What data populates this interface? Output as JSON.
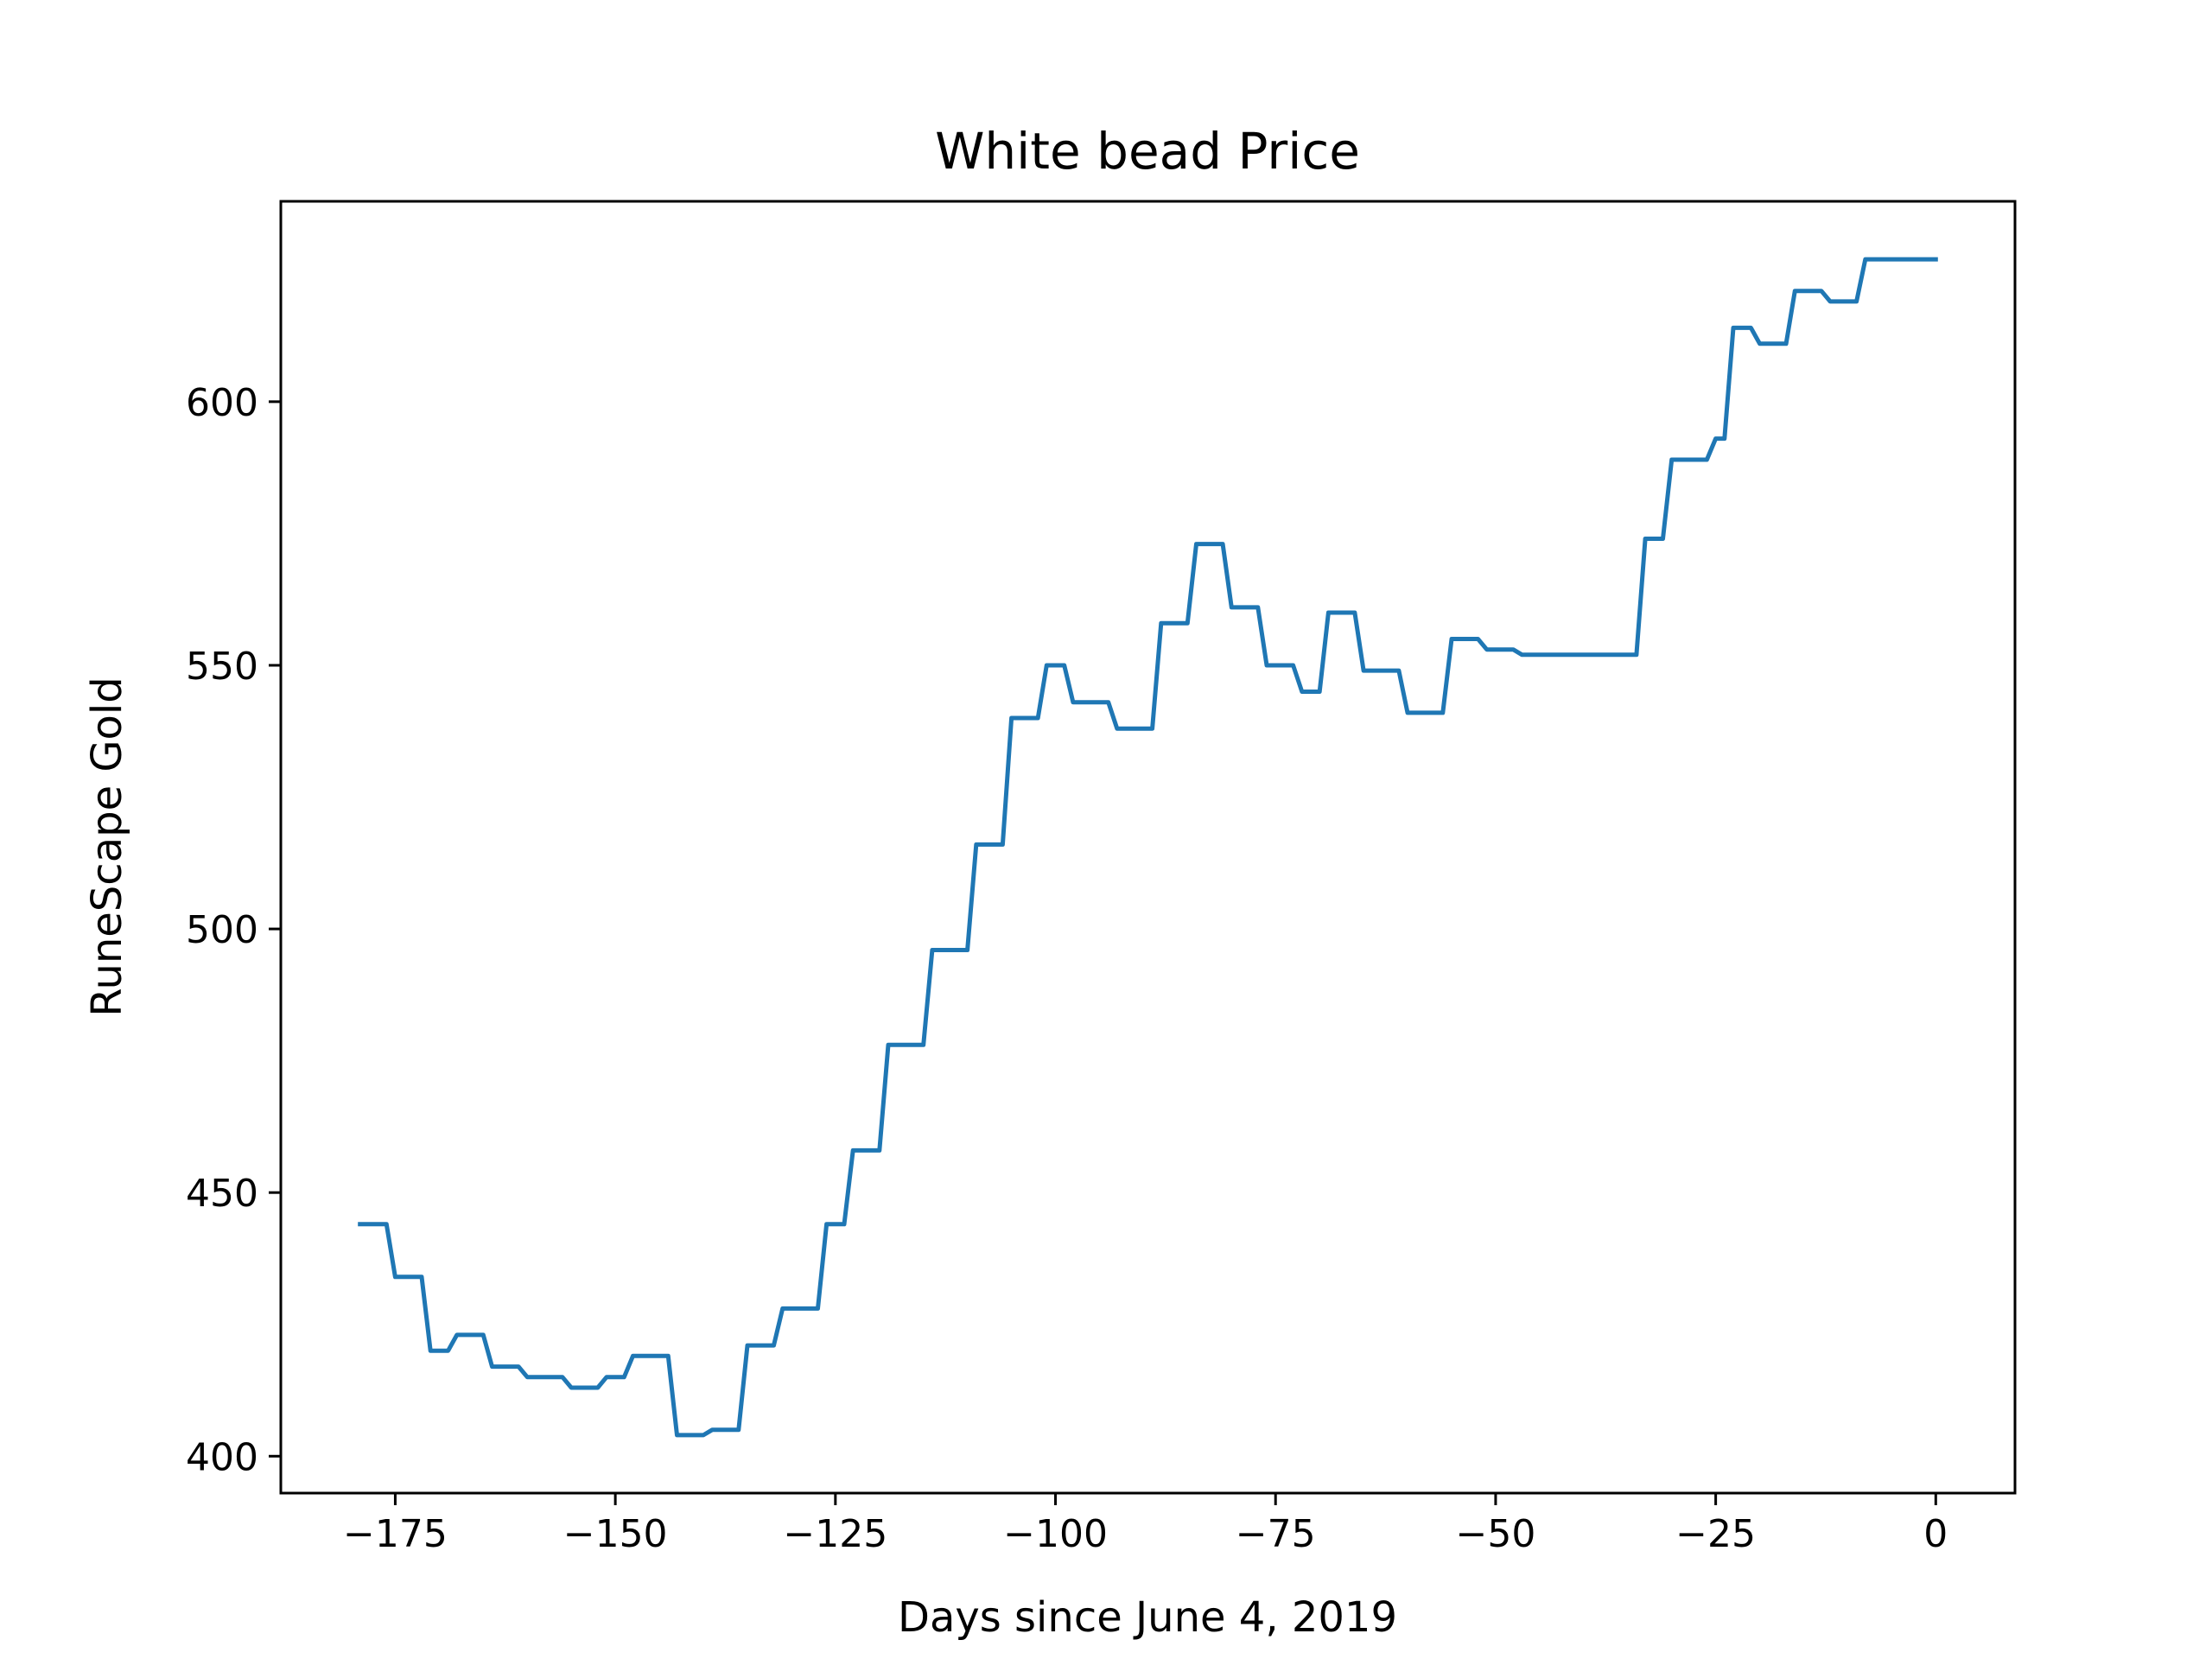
{
  "chart_data": {
    "type": "line",
    "title": "White bead Price",
    "xlabel": "Days since June 4, 2019",
    "ylabel": "RuneScape Gold",
    "xlim": [
      -188,
      9
    ],
    "ylim": [
      393,
      638
    ],
    "xticks": [
      -175,
      -150,
      -125,
      -100,
      -75,
      -50,
      -25,
      0
    ],
    "xtick_labels": [
      "−175",
      "−150",
      "−125",
      "−100",
      "−75",
      "−50",
      "−25",
      "0"
    ],
    "yticks": [
      400,
      450,
      500,
      550,
      600
    ],
    "ytick_labels": [
      "400",
      "450",
      "500",
      "550",
      "600"
    ],
    "grid": false,
    "legend": "none",
    "series": [
      {
        "color": "#1f77b4",
        "x": [
          -179,
          -176,
          -175,
          -172,
          -171,
          -169,
          -168,
          -165,
          -164,
          -161,
          -160,
          -156,
          -155,
          -152,
          -151,
          -149,
          -148,
          -144,
          -143,
          -140,
          -139,
          -136,
          -135,
          -132,
          -131,
          -127,
          -126,
          -124,
          -123,
          -120,
          -119,
          -115,
          -114,
          -110,
          -109,
          -106,
          -105,
          -102,
          -101,
          -99,
          -98,
          -94,
          -93,
          -89,
          -88,
          -85,
          -84,
          -81,
          -80,
          -77,
          -76,
          -73,
          -72,
          -70,
          -69,
          -66,
          -65,
          -61,
          -60,
          -56,
          -55,
          -52,
          -51,
          -48,
          -47,
          -45,
          -44,
          -42,
          -41,
          -34,
          -33,
          -31,
          -30,
          -26,
          -25,
          -24,
          -23,
          -21,
          -20,
          -17,
          -16,
          -13,
          -12,
          -9,
          -8,
          -6,
          -5,
          -2,
          -1,
          0
        ],
        "y": [
          444,
          444,
          434,
          434,
          420,
          420,
          423,
          423,
          417,
          417,
          415,
          415,
          413,
          413,
          415,
          415,
          419,
          419,
          404,
          404,
          405,
          405,
          421,
          421,
          428,
          428,
          444,
          444,
          458,
          458,
          478,
          478,
          496,
          496,
          516,
          516,
          540,
          540,
          550,
          550,
          543,
          543,
          538,
          538,
          558,
          558,
          573,
          573,
          561,
          561,
          550,
          550,
          545,
          545,
          560,
          560,
          549,
          549,
          541,
          541,
          555,
          555,
          553,
          553,
          552,
          552,
          552,
          552,
          552,
          552,
          574,
          574,
          589,
          589,
          593,
          593,
          614,
          614,
          611,
          611,
          621,
          621,
          619,
          619,
          627,
          627,
          627,
          627,
          627,
          627
        ]
      }
    ]
  }
}
